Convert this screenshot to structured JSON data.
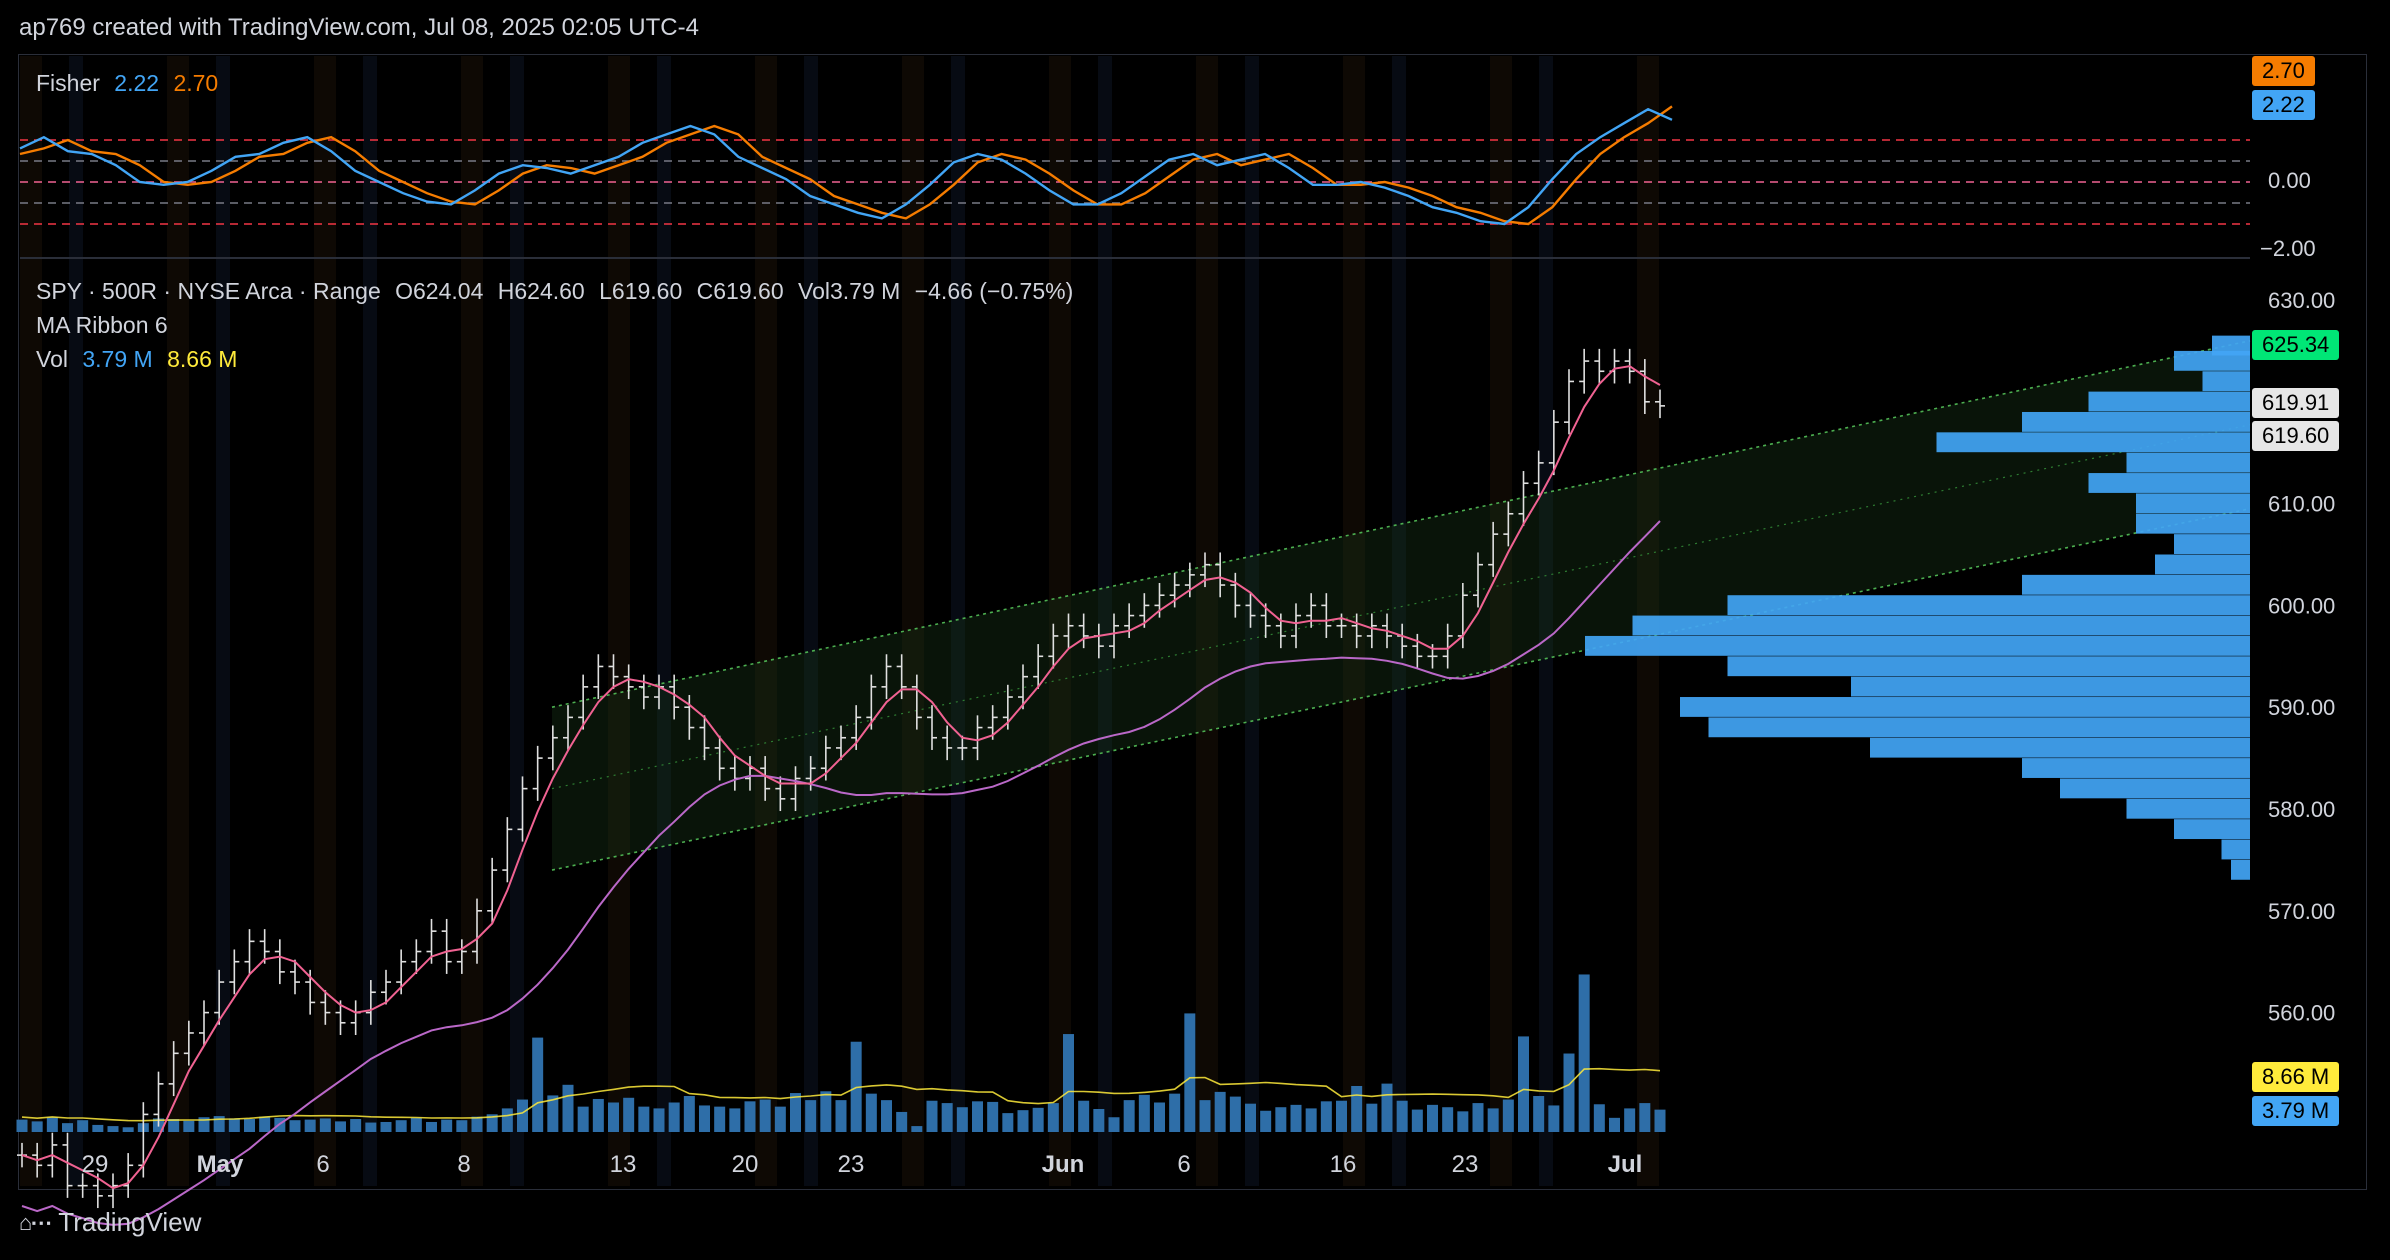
{
  "header": {
    "text": "ap769 created with TradingView.com, Jul 08, 2025 02:05 UTC-4"
  },
  "footer": {
    "logo_text": "TradingView"
  },
  "fisher": {
    "label": "Fisher",
    "value1": "2.22",
    "value2": "2.70",
    "tags": [
      "2.70",
      "2.22"
    ],
    "axis_labels": [
      "0.00",
      "−2.00"
    ],
    "colors": {
      "fisher": "#42a5f5",
      "trigger": "#f57c00"
    }
  },
  "legend": {
    "line1": [
      "SPY · 500R · NYSE Arca · Range",
      "O624.04",
      "H624.60",
      "L619.60",
      "C619.60",
      "Vol3.79 M",
      "−4.66 (−0.75%)"
    ],
    "line2": "MA Ribbon 6",
    "line3_label": "Vol",
    "vol1": "3.79 M",
    "vol2": "8.66 M"
  },
  "price_axis": {
    "labels": [
      "630.00",
      "610.00",
      "600.00",
      "590.00",
      "580.00",
      "570.00",
      "560.00"
    ],
    "tags": [
      {
        "text": "625.34",
        "bg": "#00e676",
        "fg": "#000000"
      },
      {
        "text": "619.91",
        "bg": "#e6e6e6",
        "fg": "#000000"
      },
      {
        "text": "619.60",
        "bg": "#e6e6e6",
        "fg": "#000000"
      },
      {
        "text": "8.66 M",
        "bg": "#ffeb3b",
        "fg": "#000000"
      },
      {
        "text": "3.79 M",
        "bg": "#42a5f5",
        "fg": "#000000"
      }
    ]
  },
  "time_axis": {
    "labels": [
      "29",
      "May",
      "6",
      "8",
      "13",
      "20",
      "23",
      "Jun",
      "6",
      "16",
      "23",
      "Jul"
    ]
  },
  "chart_data": {
    "type": "bar",
    "symbol": "SPY",
    "ohlc_last": {
      "open": 624.04,
      "high": 624.6,
      "low": 619.6,
      "close": 619.6
    },
    "change": -4.66,
    "change_pct": -0.75,
    "close": [
      546,
      545,
      547,
      543,
      543,
      542,
      543,
      545,
      550,
      553,
      556,
      558,
      560,
      563,
      565,
      567,
      566,
      564,
      563,
      561,
      560,
      559,
      560,
      562,
      563,
      565,
      566,
      568,
      565,
      566,
      570,
      574,
      578,
      582,
      585,
      587,
      589,
      592,
      594,
      593,
      592,
      591,
      592,
      590,
      588,
      586,
      584,
      583,
      584,
      582,
      581,
      583,
      584,
      586,
      587,
      589,
      592,
      594,
      592,
      589,
      587,
      586,
      586,
      588,
      589,
      591,
      593,
      595,
      597,
      598,
      597,
      596,
      598,
      599,
      600,
      601,
      602,
      603,
      604,
      602,
      600,
      599,
      598,
      597,
      599,
      600,
      598,
      598,
      597,
      598,
      597,
      596,
      595,
      595,
      597,
      601,
      604,
      607,
      609,
      612,
      614,
      618,
      622,
      624,
      623,
      624,
      623,
      620,
      619.6
    ],
    "volume_m": [
      2.1,
      1.8,
      2.5,
      1.5,
      2.0,
      1.2,
      1.0,
      0.8,
      1.5,
      2.3,
      2.2,
      1.9,
      2.5,
      2.7,
      2.3,
      2.2,
      2.6,
      2.4,
      2.0,
      2.1,
      2.3,
      1.8,
      2.2,
      1.6,
      1.7,
      2.0,
      2.4,
      1.7,
      2.1,
      2.0,
      2.6,
      3.0,
      4.0,
      5.5,
      16.0,
      6.2,
      8.0,
      4.3,
      5.6,
      5.0,
      5.8,
      4.3,
      4.0,
      5.0,
      6.1,
      4.5,
      4.3,
      4.0,
      5.2,
      5.5,
      4.3,
      6.6,
      5.4,
      6.9,
      5.4,
      15.3,
      6.5,
      5.4,
      3.4,
      1.0,
      5.3,
      4.9,
      4.2,
      5.2,
      5.1,
      3.2,
      3.7,
      4.1,
      4.9,
      16.6,
      5.3,
      3.9,
      2.5,
      5.4,
      6.3,
      5.0,
      6.5,
      20.1,
      5.4,
      6.8,
      6.0,
      4.8,
      3.6,
      4.2,
      4.6,
      4.0,
      5.2,
      5.3,
      7.8,
      4.8,
      8.2,
      5.3,
      3.8,
      4.6,
      4.2,
      3.5,
      4.9,
      4.0,
      5.5,
      16.2,
      6.1,
      4.5,
      13.3,
      26.7,
      4.7,
      2.4,
      4.0,
      4.9,
      3.79
    ],
    "fisher": [
      1.2,
      1.6,
      1.1,
      1.0,
      0.6,
      0.0,
      -0.1,
      0.0,
      0.4,
      0.9,
      1.0,
      1.4,
      1.6,
      1.1,
      0.4,
      0.0,
      -0.4,
      -0.7,
      -0.8,
      -0.3,
      0.3,
      0.6,
      0.5,
      0.3,
      0.6,
      0.9,
      1.4,
      1.7,
      2.0,
      1.7,
      0.9,
      0.5,
      0.1,
      -0.5,
      -0.8,
      -1.1,
      -1.3,
      -0.8,
      -0.1,
      0.7,
      1.0,
      0.8,
      0.3,
      -0.3,
      -0.8,
      -0.8,
      -0.4,
      0.2,
      0.8,
      1.0,
      0.6,
      0.8,
      1.0,
      0.5,
      -0.1,
      -0.1,
      0.0,
      -0.2,
      -0.5,
      -0.9,
      -1.1,
      -1.4,
      -1.5,
      -0.9,
      0.1,
      1.0,
      1.6,
      2.1,
      2.6,
      2.22
    ],
    "fisher_trigger": [
      1.0,
      1.2,
      1.5,
      1.1,
      1.0,
      0.6,
      0.0,
      -0.1,
      0.0,
      0.4,
      0.9,
      1.0,
      1.4,
      1.6,
      1.1,
      0.4,
      0.0,
      -0.4,
      -0.7,
      -0.8,
      -0.3,
      0.3,
      0.6,
      0.5,
      0.3,
      0.6,
      0.9,
      1.4,
      1.7,
      2.0,
      1.7,
      0.9,
      0.5,
      0.1,
      -0.5,
      -0.8,
      -1.1,
      -1.3,
      -0.8,
      -0.1,
      0.7,
      1.0,
      0.8,
      0.3,
      -0.3,
      -0.8,
      -0.8,
      -0.4,
      0.2,
      0.8,
      1.0,
      0.6,
      0.8,
      1.0,
      0.5,
      -0.1,
      -0.1,
      0.0,
      -0.2,
      -0.5,
      -0.9,
      -1.1,
      -1.4,
      -1.5,
      -0.9,
      0.1,
      1.0,
      1.6,
      2.1,
      2.7
    ],
    "ylim": [
      555,
      632
    ],
    "fisher_levels": [
      1.5,
      0.75,
      0.0,
      -0.75,
      -1.5
    ],
    "channel": {
      "upper_start": 590.0,
      "upper_end": 626.0,
      "lower_start": 574.0,
      "lower_end": 609.5
    },
    "volume_profile": [
      {
        "price": 625.5,
        "w": 0.04
      },
      {
        "price": 624.0,
        "w": 0.08
      },
      {
        "price": 622.0,
        "w": 0.05
      },
      {
        "price": 620.0,
        "w": 0.17
      },
      {
        "price": 618.0,
        "w": 0.24
      },
      {
        "price": 616.0,
        "w": 0.33
      },
      {
        "price": 614.0,
        "w": 0.13
      },
      {
        "price": 612.0,
        "w": 0.17
      },
      {
        "price": 610.0,
        "w": 0.12
      },
      {
        "price": 608.0,
        "w": 0.12
      },
      {
        "price": 606.0,
        "w": 0.08
      },
      {
        "price": 604.0,
        "w": 0.1
      },
      {
        "price": 602.0,
        "w": 0.24
      },
      {
        "price": 600.0,
        "w": 0.55
      },
      {
        "price": 598.0,
        "w": 0.65
      },
      {
        "price": 596.0,
        "w": 0.7
      },
      {
        "price": 594.0,
        "w": 0.55
      },
      {
        "price": 592.0,
        "w": 0.42
      },
      {
        "price": 590.0,
        "w": 0.6
      },
      {
        "price": 588.0,
        "w": 0.57
      },
      {
        "price": 586.0,
        "w": 0.4
      },
      {
        "price": 584.0,
        "w": 0.24
      },
      {
        "price": 582.0,
        "w": 0.2
      },
      {
        "price": 580.0,
        "w": 0.13
      },
      {
        "price": 578.0,
        "w": 0.08
      },
      {
        "price": 576.0,
        "w": 0.03
      },
      {
        "price": 574.0,
        "w": 0.02
      }
    ]
  }
}
